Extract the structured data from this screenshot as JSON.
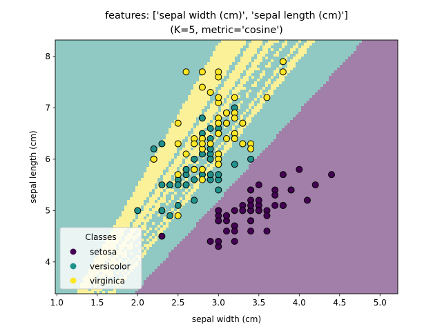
{
  "chart_data": {
    "type": "scatter",
    "title": "features: ['sepal width (cm)', 'sepal length (cm)']",
    "subtitle": "(K=5, metric='cosine')",
    "xlabel": "sepal width (cm)",
    "ylabel": "sepal length (cm)",
    "xlim": [
      0.98,
      5.22
    ],
    "ylim": [
      3.38,
      8.32
    ],
    "xticks": [
      1.0,
      1.5,
      2.0,
      2.5,
      3.0,
      3.5,
      4.0,
      4.5,
      5.0
    ],
    "xtick_labels": [
      "1.0",
      "1.5",
      "2.0",
      "2.5",
      "3.0",
      "3.5",
      "4.0",
      "4.5",
      "5.0"
    ],
    "yticks": [
      4,
      5,
      6,
      7,
      8
    ],
    "ytick_labels": [
      "4",
      "5",
      "6",
      "7",
      "8"
    ],
    "grid": false,
    "background": "decision regions (K-nearest neighbors, cosine metric)",
    "region_colors": {
      "setosa": "#a17fa8",
      "versicolor": "#90c9c3",
      "virginica": "#fbf198"
    },
    "legend": {
      "title": "Classes",
      "placement": "lower-left",
      "entries": [
        "setosa",
        "versicolor",
        "virginica"
      ]
    },
    "series": [
      {
        "name": "setosa",
        "color": "#440154",
        "points": [
          [
            3.5,
            5.1
          ],
          [
            3.0,
            4.9
          ],
          [
            3.2,
            4.7
          ],
          [
            3.1,
            4.6
          ],
          [
            3.6,
            5.0
          ],
          [
            3.9,
            5.4
          ],
          [
            3.4,
            4.6
          ],
          [
            3.4,
            5.0
          ],
          [
            2.9,
            4.4
          ],
          [
            3.1,
            4.9
          ],
          [
            3.7,
            5.4
          ],
          [
            3.4,
            4.8
          ],
          [
            3.0,
            4.8
          ],
          [
            3.0,
            4.3
          ],
          [
            4.0,
            5.8
          ],
          [
            4.4,
            5.7
          ],
          [
            3.9,
            5.4
          ],
          [
            3.5,
            5.1
          ],
          [
            3.8,
            5.7
          ],
          [
            3.8,
            5.1
          ],
          [
            3.4,
            5.4
          ],
          [
            3.7,
            5.1
          ],
          [
            3.6,
            4.6
          ],
          [
            3.3,
            5.1
          ],
          [
            3.4,
            4.8
          ],
          [
            3.0,
            5.0
          ],
          [
            3.4,
            5.0
          ],
          [
            3.5,
            5.2
          ],
          [
            3.4,
            5.2
          ],
          [
            3.2,
            4.7
          ],
          [
            3.1,
            4.8
          ],
          [
            3.4,
            5.4
          ],
          [
            4.1,
            5.2
          ],
          [
            4.2,
            5.5
          ],
          [
            3.1,
            4.9
          ],
          [
            3.2,
            5.0
          ],
          [
            3.5,
            5.5
          ],
          [
            3.6,
            4.9
          ],
          [
            3.0,
            4.4
          ],
          [
            3.4,
            5.1
          ],
          [
            3.5,
            5.0
          ],
          [
            2.3,
            4.5
          ],
          [
            3.2,
            4.4
          ],
          [
            3.5,
            5.0
          ],
          [
            3.8,
            5.1
          ],
          [
            3.0,
            4.8
          ],
          [
            3.8,
            5.1
          ],
          [
            3.2,
            4.6
          ],
          [
            3.7,
            5.3
          ],
          [
            3.3,
            5.0
          ]
        ]
      },
      {
        "name": "versicolor",
        "color": "#21918c",
        "points": [
          [
            3.2,
            7.0
          ],
          [
            3.2,
            6.4
          ],
          [
            3.1,
            6.9
          ],
          [
            2.3,
            5.5
          ],
          [
            2.8,
            6.5
          ],
          [
            2.8,
            5.7
          ],
          [
            3.3,
            6.3
          ],
          [
            2.4,
            4.9
          ],
          [
            2.9,
            6.6
          ],
          [
            2.7,
            5.2
          ],
          [
            2.0,
            5.0
          ],
          [
            3.0,
            5.9
          ],
          [
            2.2,
            6.0
          ],
          [
            2.9,
            6.1
          ],
          [
            2.9,
            5.6
          ],
          [
            3.1,
            6.7
          ],
          [
            3.0,
            5.6
          ],
          [
            2.7,
            5.8
          ],
          [
            2.2,
            6.2
          ],
          [
            2.5,
            5.6
          ],
          [
            3.2,
            5.9
          ],
          [
            2.8,
            6.1
          ],
          [
            2.5,
            6.3
          ],
          [
            2.8,
            6.1
          ],
          [
            2.9,
            6.4
          ],
          [
            3.0,
            6.6
          ],
          [
            2.8,
            6.8
          ],
          [
            3.0,
            6.7
          ],
          [
            2.9,
            6.0
          ],
          [
            2.6,
            5.7
          ],
          [
            2.4,
            5.5
          ],
          [
            2.4,
            5.5
          ],
          [
            2.7,
            5.8
          ],
          [
            2.7,
            6.0
          ],
          [
            3.0,
            5.4
          ],
          [
            3.4,
            6.0
          ],
          [
            3.1,
            6.7
          ],
          [
            2.3,
            6.3
          ],
          [
            3.0,
            5.6
          ],
          [
            2.5,
            5.5
          ],
          [
            2.6,
            5.5
          ],
          [
            3.0,
            6.1
          ],
          [
            2.6,
            5.8
          ],
          [
            2.3,
            5.0
          ],
          [
            2.7,
            5.6
          ],
          [
            3.0,
            5.7
          ],
          [
            2.9,
            5.7
          ],
          [
            2.9,
            6.2
          ],
          [
            2.5,
            5.1
          ],
          [
            2.8,
            5.7
          ]
        ]
      },
      {
        "name": "virginica",
        "color": "#fde725",
        "points": [
          [
            3.3,
            6.3
          ],
          [
            2.7,
            5.8
          ],
          [
            3.0,
            7.1
          ],
          [
            2.9,
            6.3
          ],
          [
            3.0,
            6.5
          ],
          [
            3.0,
            7.6
          ],
          [
            2.5,
            4.9
          ],
          [
            2.9,
            7.3
          ],
          [
            2.5,
            6.7
          ],
          [
            3.6,
            7.2
          ],
          [
            3.2,
            6.5
          ],
          [
            2.7,
            6.4
          ],
          [
            3.0,
            6.8
          ],
          [
            2.5,
            5.7
          ],
          [
            2.8,
            5.8
          ],
          [
            3.2,
            6.4
          ],
          [
            3.0,
            6.5
          ],
          [
            3.8,
            7.7
          ],
          [
            2.6,
            7.7
          ],
          [
            2.2,
            6.0
          ],
          [
            3.2,
            6.9
          ],
          [
            2.8,
            5.6
          ],
          [
            2.8,
            7.7
          ],
          [
            2.7,
            6.3
          ],
          [
            3.3,
            6.7
          ],
          [
            3.2,
            7.2
          ],
          [
            2.8,
            6.2
          ],
          [
            3.0,
            6.1
          ],
          [
            2.8,
            6.4
          ],
          [
            3.0,
            7.2
          ],
          [
            2.8,
            7.4
          ],
          [
            3.8,
            7.9
          ],
          [
            2.8,
            6.4
          ],
          [
            2.8,
            6.3
          ],
          [
            2.6,
            6.1
          ],
          [
            3.0,
            7.7
          ],
          [
            3.4,
            6.3
          ],
          [
            3.1,
            6.4
          ],
          [
            3.0,
            6.0
          ],
          [
            3.1,
            6.9
          ],
          [
            3.1,
            6.7
          ],
          [
            3.1,
            6.9
          ],
          [
            2.7,
            5.8
          ],
          [
            3.2,
            6.8
          ],
          [
            3.3,
            6.7
          ],
          [
            3.0,
            6.7
          ],
          [
            2.5,
            6.3
          ],
          [
            3.0,
            6.5
          ],
          [
            3.4,
            6.2
          ],
          [
            3.0,
            5.9
          ]
        ]
      }
    ]
  }
}
